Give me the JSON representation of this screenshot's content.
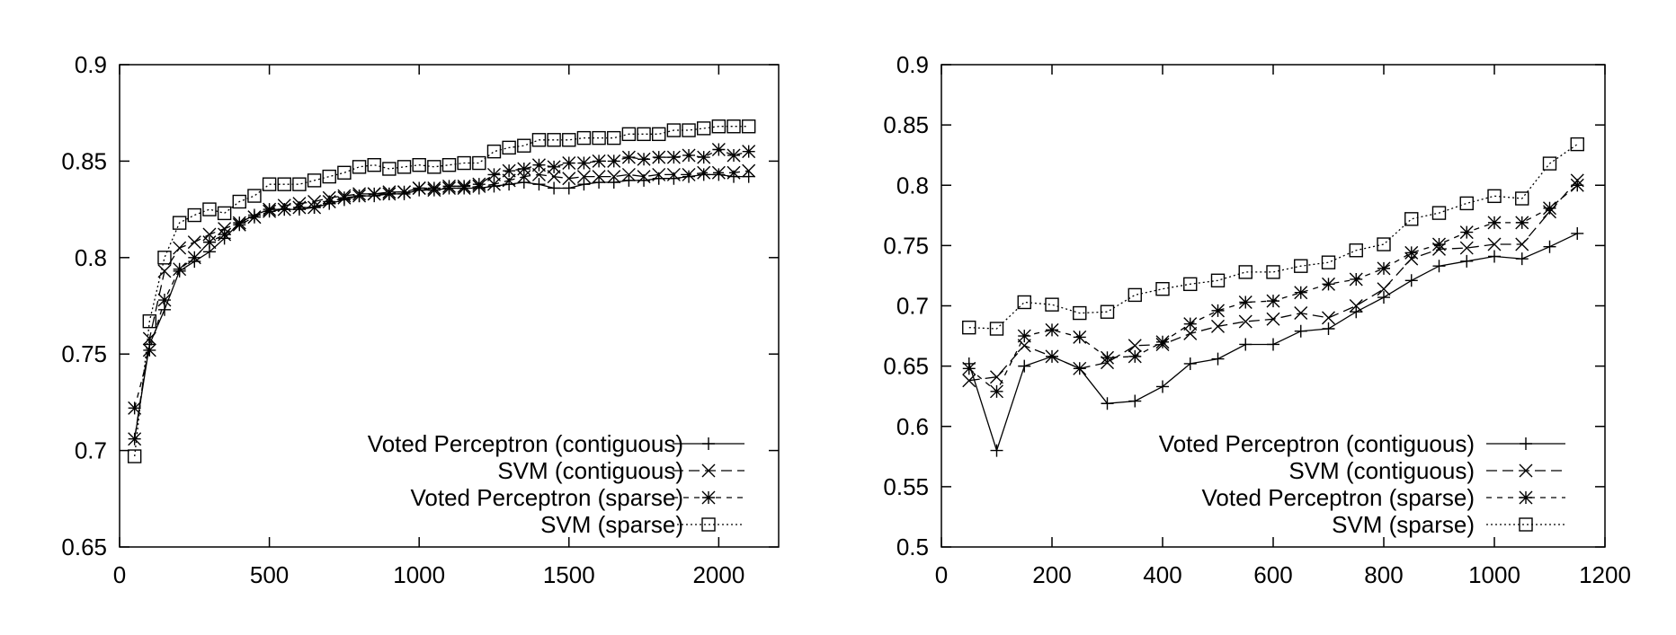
{
  "chart_data": [
    {
      "type": "line",
      "title": "",
      "xlabel": "",
      "ylabel": "",
      "xlim": [
        0,
        2200
      ],
      "ylim": [
        0.65,
        0.9
      ],
      "xticks": [
        "0",
        "500",
        "1000",
        "1500",
        "2000"
      ],
      "yticks": [
        "0.65",
        "0.7",
        "0.75",
        "0.8",
        "0.85",
        "0.9"
      ],
      "grid": false,
      "legend_position": "bottom-right",
      "x": [
        50,
        100,
        150,
        200,
        250,
        300,
        350,
        400,
        450,
        500,
        550,
        600,
        650,
        700,
        750,
        800,
        850,
        900,
        950,
        1000,
        1050,
        1100,
        1150,
        1200,
        1250,
        1300,
        1350,
        1400,
        1450,
        1500,
        1550,
        1600,
        1650,
        1700,
        1750,
        1800,
        1850,
        1900,
        1950,
        2000,
        2050,
        2100
      ],
      "series": [
        {
          "name": "Voted Perceptron (contiguous)",
          "marker": "plus",
          "dash": "solid",
          "values": [
            0.706,
            0.755,
            0.773,
            0.793,
            0.798,
            0.803,
            0.81,
            0.818,
            0.822,
            0.825,
            0.825,
            0.825,
            0.826,
            0.828,
            0.83,
            0.832,
            0.832,
            0.833,
            0.833,
            0.835,
            0.835,
            0.836,
            0.836,
            0.836,
            0.837,
            0.838,
            0.839,
            0.838,
            0.836,
            0.836,
            0.838,
            0.839,
            0.839,
            0.84,
            0.84,
            0.841,
            0.841,
            0.842,
            0.843,
            0.843,
            0.842,
            0.842
          ]
        },
        {
          "name": "SVM (contiguous)",
          "marker": "x",
          "dash": "dashed",
          "values": [
            0.706,
            0.758,
            0.793,
            0.805,
            0.808,
            0.812,
            0.815,
            0.818,
            0.821,
            0.825,
            0.827,
            0.828,
            0.829,
            0.831,
            0.832,
            0.833,
            0.833,
            0.834,
            0.834,
            0.836,
            0.835,
            0.836,
            0.836,
            0.837,
            0.838,
            0.84,
            0.842,
            0.843,
            0.842,
            0.841,
            0.842,
            0.842,
            0.842,
            0.843,
            0.842,
            0.843,
            0.843,
            0.843,
            0.844,
            0.844,
            0.844,
            0.845
          ]
        },
        {
          "name": "Voted Perceptron (sparse)",
          "marker": "star",
          "dash": "short-dashed",
          "values": [
            0.722,
            0.752,
            0.778,
            0.794,
            0.8,
            0.808,
            0.812,
            0.817,
            0.821,
            0.824,
            0.825,
            0.826,
            0.826,
            0.829,
            0.831,
            0.832,
            0.833,
            0.833,
            0.834,
            0.836,
            0.836,
            0.837,
            0.837,
            0.838,
            0.843,
            0.845,
            0.846,
            0.848,
            0.847,
            0.849,
            0.849,
            0.85,
            0.85,
            0.852,
            0.851,
            0.852,
            0.852,
            0.853,
            0.852,
            0.856,
            0.853,
            0.855
          ]
        },
        {
          "name": "SVM (sparse)",
          "marker": "square",
          "dash": "dotted",
          "values": [
            0.697,
            0.767,
            0.8,
            0.818,
            0.822,
            0.825,
            0.823,
            0.829,
            0.832,
            0.838,
            0.838,
            0.838,
            0.84,
            0.842,
            0.844,
            0.847,
            0.848,
            0.846,
            0.847,
            0.848,
            0.847,
            0.848,
            0.849,
            0.849,
            0.855,
            0.857,
            0.858,
            0.861,
            0.861,
            0.861,
            0.862,
            0.862,
            0.862,
            0.864,
            0.864,
            0.864,
            0.866,
            0.866,
            0.867,
            0.868,
            0.868,
            0.868
          ]
        }
      ]
    },
    {
      "type": "line",
      "title": "",
      "xlabel": "",
      "ylabel": "",
      "xlim": [
        0,
        1200
      ],
      "ylim": [
        0.5,
        0.9
      ],
      "xticks": [
        "0",
        "200",
        "400",
        "600",
        "800",
        "1000",
        "1200"
      ],
      "yticks": [
        "0.5",
        "0.55",
        "0.6",
        "0.65",
        "0.7",
        "0.75",
        "0.8",
        "0.85",
        "0.9"
      ],
      "grid": false,
      "legend_position": "bottom-right",
      "x": [
        50,
        100,
        150,
        200,
        250,
        300,
        350,
        400,
        450,
        500,
        550,
        600,
        650,
        700,
        750,
        800,
        850,
        900,
        950,
        1000,
        1050,
        1100,
        1150
      ],
      "series": [
        {
          "name": "Voted Perceptron (contiguous)",
          "marker": "plus",
          "dash": "solid",
          "values": [
            0.652,
            0.58,
            0.65,
            0.658,
            0.648,
            0.619,
            0.621,
            0.633,
            0.652,
            0.656,
            0.668,
            0.668,
            0.679,
            0.681,
            0.695,
            0.707,
            0.721,
            0.733,
            0.737,
            0.741,
            0.739,
            0.749,
            0.76
          ]
        },
        {
          "name": "SVM (contiguous)",
          "marker": "x",
          "dash": "dashed",
          "values": [
            0.638,
            0.641,
            0.667,
            0.658,
            0.648,
            0.653,
            0.667,
            0.668,
            0.677,
            0.683,
            0.687,
            0.689,
            0.694,
            0.69,
            0.7,
            0.714,
            0.739,
            0.747,
            0.748,
            0.751,
            0.751,
            0.778,
            0.804
          ]
        },
        {
          "name": "Voted Perceptron (sparse)",
          "marker": "star",
          "dash": "short-dashed",
          "values": [
            0.648,
            0.629,
            0.675,
            0.68,
            0.674,
            0.657,
            0.658,
            0.67,
            0.685,
            0.696,
            0.703,
            0.704,
            0.711,
            0.718,
            0.722,
            0.731,
            0.744,
            0.751,
            0.761,
            0.769,
            0.769,
            0.781,
            0.8
          ]
        },
        {
          "name": "SVM (sparse)",
          "marker": "square",
          "dash": "dotted",
          "values": [
            0.682,
            0.681,
            0.703,
            0.701,
            0.694,
            0.695,
            0.709,
            0.714,
            0.718,
            0.721,
            0.728,
            0.728,
            0.733,
            0.736,
            0.746,
            0.751,
            0.772,
            0.777,
            0.785,
            0.791,
            0.789,
            0.818,
            0.834
          ]
        }
      ]
    }
  ]
}
